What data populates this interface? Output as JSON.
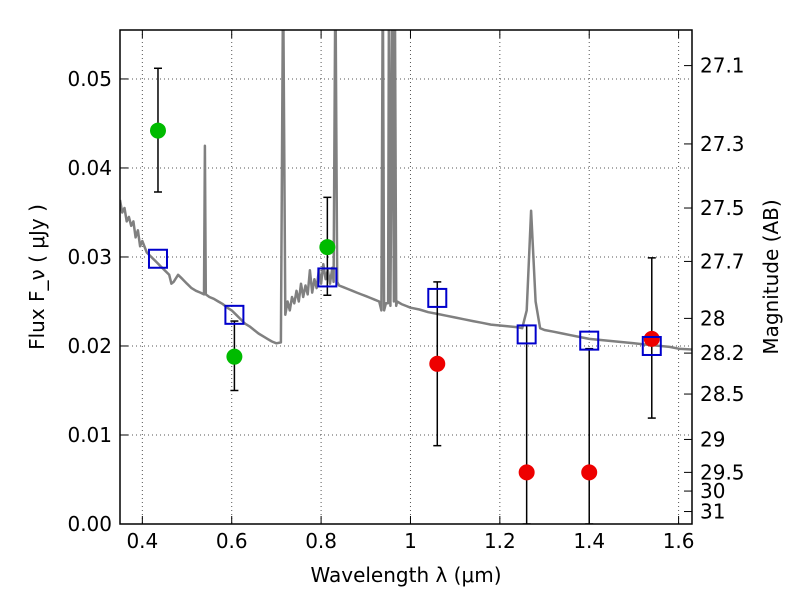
{
  "chart_data": {
    "type": "scatter",
    "xlabel": "Wavelength  λ (μm)",
    "ylabel": "Flux  F_ν  ( μJy )",
    "y2label": "Magnitude (AB)",
    "xlim": [
      0.35,
      1.63
    ],
    "ylim": [
      0.0,
      0.0555
    ],
    "grid": true,
    "x_ticks": [
      0.4,
      0.6,
      0.8,
      1.0,
      1.2,
      1.4,
      1.6
    ],
    "x_tick_labels": [
      "0.4",
      "0.6",
      "0.8",
      "1",
      "1.2",
      "1.4",
      "1.6"
    ],
    "y_ticks": [
      0.0,
      0.01,
      0.02,
      0.03,
      0.04,
      0.05
    ],
    "y_tick_labels": [
      "0.00",
      "0.01",
      "0.02",
      "0.03",
      "0.04",
      "0.05"
    ],
    "y2_ticks": [
      {
        "label": "27.1",
        "flux": 0.0515
      },
      {
        "label": "27.3",
        "flux": 0.0427
      },
      {
        "label": "27.5",
        "flux": 0.0355
      },
      {
        "label": "27.7",
        "flux": 0.0295
      },
      {
        "label": "28",
        "flux": 0.0231
      },
      {
        "label": "28.2",
        "flux": 0.0192
      },
      {
        "label": "28.5",
        "flux": 0.0146
      },
      {
        "label": "29",
        "flux": 0.0095
      },
      {
        "label": "29.5",
        "flux": 0.0058
      },
      {
        "label": "30",
        "flux": 0.0037
      },
      {
        "label": "31",
        "flux": 0.0014
      }
    ],
    "colors": {
      "spectrum": "#808080",
      "green": "#00bb00",
      "red": "#ee0000",
      "model": "#0000cc",
      "errorbar": "#000000",
      "grid": "#555555"
    },
    "spectrum": [
      [
        0.35,
        0.0364
      ],
      [
        0.355,
        0.035
      ],
      [
        0.36,
        0.0355
      ],
      [
        0.365,
        0.034
      ],
      [
        0.37,
        0.0345
      ],
      [
        0.375,
        0.0335
      ],
      [
        0.38,
        0.034
      ],
      [
        0.385,
        0.0322
      ],
      [
        0.39,
        0.033
      ],
      [
        0.395,
        0.0312
      ],
      [
        0.4,
        0.0318
      ],
      [
        0.41,
        0.0305
      ],
      [
        0.42,
        0.03
      ],
      [
        0.43,
        0.0295
      ],
      [
        0.44,
        0.029
      ],
      [
        0.45,
        0.0285
      ],
      [
        0.46,
        0.028
      ],
      [
        0.465,
        0.027
      ],
      [
        0.47,
        0.0272
      ],
      [
        0.48,
        0.028
      ],
      [
        0.49,
        0.0275
      ],
      [
        0.5,
        0.027
      ],
      [
        0.51,
        0.0265
      ],
      [
        0.52,
        0.0262
      ],
      [
        0.53,
        0.026
      ],
      [
        0.538,
        0.0258
      ],
      [
        0.54,
        0.0425
      ],
      [
        0.542,
        0.0258
      ],
      [
        0.55,
        0.0255
      ],
      [
        0.56,
        0.0253
      ],
      [
        0.57,
        0.025
      ],
      [
        0.58,
        0.0247
      ],
      [
        0.59,
        0.0243
      ],
      [
        0.6,
        0.024
      ],
      [
        0.61,
        0.0235
      ],
      [
        0.62,
        0.023
      ],
      [
        0.63,
        0.0225
      ],
      [
        0.64,
        0.0222
      ],
      [
        0.65,
        0.0218
      ],
      [
        0.66,
        0.0214
      ],
      [
        0.67,
        0.0211
      ],
      [
        0.68,
        0.0208
      ],
      [
        0.69,
        0.0205
      ],
      [
        0.7,
        0.0203
      ],
      [
        0.71,
        0.0204
      ],
      [
        0.715,
        0.062
      ],
      [
        0.72,
        0.0235
      ],
      [
        0.725,
        0.025
      ],
      [
        0.73,
        0.024
      ],
      [
        0.735,
        0.0255
      ],
      [
        0.74,
        0.0248
      ],
      [
        0.745,
        0.0262
      ],
      [
        0.75,
        0.025
      ],
      [
        0.755,
        0.027
      ],
      [
        0.76,
        0.0255
      ],
      [
        0.765,
        0.0268
      ],
      [
        0.77,
        0.0258
      ],
      [
        0.775,
        0.0285
      ],
      [
        0.78,
        0.026
      ],
      [
        0.785,
        0.0275
      ],
      [
        0.79,
        0.0265
      ],
      [
        0.795,
        0.0285
      ],
      [
        0.8,
        0.027
      ],
      [
        0.805,
        0.0292
      ],
      [
        0.81,
        0.0275
      ],
      [
        0.815,
        0.0285
      ],
      [
        0.82,
        0.027
      ],
      [
        0.825,
        0.0288
      ],
      [
        0.828,
        0.0272
      ],
      [
        0.832,
        0.062
      ],
      [
        0.836,
        0.0272
      ],
      [
        0.84,
        0.0268
      ],
      [
        0.85,
        0.0266
      ],
      [
        0.86,
        0.0264
      ],
      [
        0.87,
        0.0262
      ],
      [
        0.88,
        0.026
      ],
      [
        0.89,
        0.0258
      ],
      [
        0.9,
        0.0256
      ],
      [
        0.91,
        0.0254
      ],
      [
        0.92,
        0.0252
      ],
      [
        0.93,
        0.025
      ],
      [
        0.935,
        0.024
      ],
      [
        0.938,
        0.062
      ],
      [
        0.941,
        0.024
      ],
      [
        0.945,
        0.0248
      ],
      [
        0.95,
        0.0248
      ],
      [
        0.952,
        0.062
      ],
      [
        0.955,
        0.0245
      ],
      [
        0.96,
        0.062
      ],
      [
        0.963,
        0.025
      ],
      [
        0.965,
        0.062
      ],
      [
        0.968,
        0.0245
      ],
      [
        0.97,
        0.025
      ],
      [
        0.98,
        0.0247
      ],
      [
        0.99,
        0.0245
      ],
      [
        1.0,
        0.0243
      ],
      [
        1.02,
        0.0241
      ],
      [
        1.04,
        0.0238
      ],
      [
        1.06,
        0.0236
      ],
      [
        1.08,
        0.0234
      ],
      [
        1.1,
        0.0232
      ],
      [
        1.12,
        0.023
      ],
      [
        1.14,
        0.0228
      ],
      [
        1.16,
        0.0226
      ],
      [
        1.18,
        0.0224
      ],
      [
        1.2,
        0.0223
      ],
      [
        1.22,
        0.0222
      ],
      [
        1.24,
        0.0221
      ],
      [
        1.25,
        0.022
      ],
      [
        1.26,
        0.024
      ],
      [
        1.27,
        0.0352
      ],
      [
        1.28,
        0.025
      ],
      [
        1.29,
        0.022
      ],
      [
        1.3,
        0.0218
      ],
      [
        1.32,
        0.0216
      ],
      [
        1.34,
        0.0214
      ],
      [
        1.36,
        0.0212
      ],
      [
        1.38,
        0.021
      ],
      [
        1.4,
        0.0208
      ],
      [
        1.42,
        0.0207
      ],
      [
        1.44,
        0.0206
      ],
      [
        1.46,
        0.0205
      ],
      [
        1.48,
        0.0204
      ],
      [
        1.5,
        0.0203
      ],
      [
        1.52,
        0.0202
      ],
      [
        1.54,
        0.0201
      ],
      [
        1.56,
        0.02
      ],
      [
        1.58,
        0.0199
      ],
      [
        1.6,
        0.0197
      ],
      [
        1.63,
        0.0196
      ]
    ],
    "series": [
      {
        "marker": "circle",
        "color": "#00bb00",
        "points": [
          {
            "x": 0.435,
            "y": 0.0442,
            "ylo": 0.0373,
            "yhi": 0.0512
          },
          {
            "x": 0.606,
            "y": 0.0188,
            "ylo": 0.015,
            "yhi": 0.0228
          },
          {
            "x": 0.814,
            "y": 0.0311,
            "ylo": 0.0257,
            "yhi": 0.0367
          }
        ]
      },
      {
        "marker": "circle",
        "color": "#ee0000",
        "points": [
          {
            "x": 1.06,
            "y": 0.018,
            "ylo": 0.0088,
            "yhi": 0.0272
          },
          {
            "x": 1.26,
            "y": 0.0058,
            "ylo": 0.0,
            "yhi": 0.0223
          },
          {
            "x": 1.4,
            "y": 0.0058,
            "ylo": 0.0,
            "yhi": 0.0197
          },
          {
            "x": 1.54,
            "y": 0.0208,
            "ylo": 0.0119,
            "yhi": 0.0299
          }
        ]
      },
      {
        "marker": "square-open",
        "color": "#0000cc",
        "points": [
          {
            "x": 0.435,
            "y": 0.0298
          },
          {
            "x": 0.606,
            "y": 0.0235
          },
          {
            "x": 0.814,
            "y": 0.0277
          },
          {
            "x": 1.06,
            "y": 0.0254
          },
          {
            "x": 1.26,
            "y": 0.0213
          },
          {
            "x": 1.4,
            "y": 0.0206
          },
          {
            "x": 1.54,
            "y": 0.02
          }
        ]
      }
    ]
  }
}
